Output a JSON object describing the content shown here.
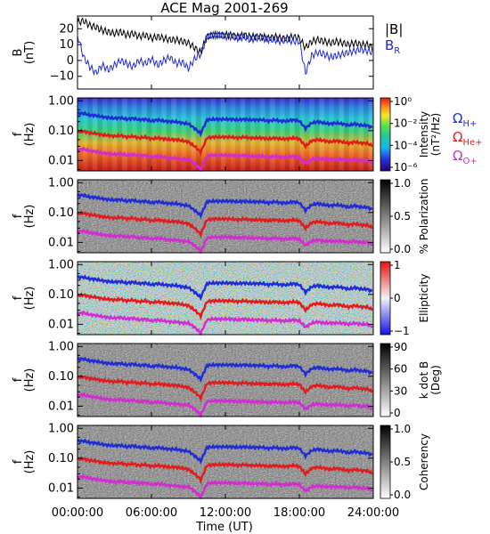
{
  "title": "ACE Mag 2001-269",
  "x_axis": {
    "label": "Time (UT)",
    "ticks": [
      "00:00:00",
      "06:00:00",
      "12:00:00",
      "18:00:00",
      "24:00:00"
    ],
    "tick_hours": [
      0,
      6,
      12,
      18,
      24
    ]
  },
  "chart_data": [
    {
      "type": "line",
      "panel": "magnetic-field",
      "ylabel_lines": [
        "B",
        "(nT)"
      ],
      "yticks": [
        -10,
        0,
        10,
        20
      ],
      "ylim": [
        -18,
        28
      ],
      "legend": [
        {
          "label": "|B|",
          "color": "#000000"
        },
        {
          "label": "B",
          "subscript": "R",
          "color": "#1f2bd6"
        }
      ],
      "x_hours": [
        0,
        0.5,
        1,
        1.5,
        2,
        2.5,
        3,
        3.5,
        4,
        4.5,
        5,
        5.5,
        6,
        6.5,
        7,
        7.5,
        8,
        8.5,
        9,
        9.5,
        10,
        10.5,
        11,
        11.5,
        12,
        12.5,
        13,
        13.5,
        14,
        14.5,
        15,
        15.5,
        16,
        16.5,
        17,
        17.5,
        18,
        18.5,
        19,
        19.5,
        20,
        20.5,
        21,
        21.5,
        22,
        22.5,
        23,
        23.5,
        24
      ],
      "series": [
        {
          "name": "|B|",
          "color": "#000000",
          "values": [
            24,
            25,
            22,
            21,
            19,
            18,
            17,
            18,
            16,
            17,
            15,
            16,
            14,
            15,
            14,
            13,
            13,
            12,
            11,
            8,
            5,
            15,
            16,
            16,
            16,
            16,
            15,
            16,
            15,
            15,
            15,
            14,
            15,
            14,
            14,
            15,
            14,
            8,
            12,
            13,
            12,
            11,
            12,
            11,
            10,
            11,
            10,
            10,
            8
          ]
        },
        {
          "name": "B_R",
          "color": "#1f2bd6",
          "values": [
            16,
            2,
            -4,
            -8,
            -3,
            -6,
            -3,
            0,
            -2,
            -4,
            0,
            -2,
            1,
            -3,
            0,
            2,
            -2,
            -1,
            -5,
            1,
            4,
            15,
            16,
            16,
            15,
            15,
            14,
            15,
            13,
            14,
            14,
            13,
            13,
            12,
            13,
            12,
            12,
            -8,
            3,
            5,
            4,
            2,
            3,
            4,
            5,
            6,
            7,
            6,
            5
          ]
        }
      ]
    },
    {
      "type": "heatmap",
      "panel": "intensity",
      "ylabel_lines": [
        "f",
        "(Hz)"
      ],
      "yticks": [
        "1.00",
        "0.10",
        "0.01"
      ],
      "ytick_values": [
        1.0,
        0.1,
        0.01
      ],
      "ylim_hz": [
        0.0045,
        1.25
      ],
      "colorbar": {
        "label": "Intensity",
        "unit": "(nT²/Hz)",
        "ticks": [
          "10⁰",
          "10⁻²",
          "10⁻⁴",
          "10⁻⁶"
        ]
      },
      "legend": [
        {
          "symbol": "Ω",
          "subscript": "H+",
          "color": "#1f2bd6"
        },
        {
          "symbol": "Ω",
          "subscript": "He+",
          "color": "#e31a1c"
        },
        {
          "symbol": "Ω",
          "subscript": "O+",
          "color": "#d42ad4"
        }
      ]
    },
    {
      "type": "heatmap",
      "panel": "polarization",
      "ylabel_lines": [
        "f",
        "(Hz)"
      ],
      "yticks": [
        "1.00",
        "0.10",
        "0.01"
      ],
      "colorbar": {
        "label": "% Polarization",
        "ticks": [
          "1.0",
          "0.5",
          "0.0"
        ]
      }
    },
    {
      "type": "heatmap",
      "panel": "ellipticity",
      "ylabel_lines": [
        "f",
        "(Hz)"
      ],
      "yticks": [
        "1.00",
        "0.10",
        "0.01"
      ],
      "colorbar": {
        "label": "Ellipticity",
        "ticks": [
          "1",
          "0",
          "−1"
        ]
      }
    },
    {
      "type": "heatmap",
      "panel": "wave-normal-angle",
      "ylabel_lines": [
        "f",
        "(Hz)"
      ],
      "yticks": [
        "1.00",
        "0.10",
        "0.01"
      ],
      "colorbar": {
        "label_lines": [
          "k dot B",
          "(Deg)"
        ],
        "ticks": [
          "90",
          "60",
          "30",
          "0"
        ]
      }
    },
    {
      "type": "heatmap",
      "panel": "coherency",
      "ylabel_lines": [
        "f",
        "(Hz)"
      ],
      "yticks": [
        "1.00",
        "0.10",
        "0.01"
      ],
      "colorbar": {
        "label": "Coherency",
        "ticks": [
          "1.0",
          "0.5",
          "0.0"
        ]
      }
    }
  ],
  "gyrofrequency_lines_hz": {
    "x_hours": [
      0,
      0.5,
      1,
      1.5,
      2,
      2.5,
      3,
      3.5,
      4,
      4.5,
      5,
      5.5,
      6,
      6.5,
      7,
      7.5,
      8,
      8.5,
      9,
      9.5,
      10,
      10.5,
      11,
      11.5,
      12,
      12.5,
      13,
      13.5,
      14,
      14.5,
      15,
      15.5,
      16,
      16.5,
      17,
      17.5,
      18,
      18.5,
      19,
      19.5,
      20,
      20.5,
      21,
      21.5,
      22,
      22.5,
      23,
      23.5,
      24
    ],
    "H+": [
      0.37,
      0.38,
      0.33,
      0.32,
      0.29,
      0.27,
      0.26,
      0.27,
      0.24,
      0.26,
      0.23,
      0.24,
      0.21,
      0.23,
      0.21,
      0.2,
      0.2,
      0.18,
      0.17,
      0.12,
      0.08,
      0.23,
      0.24,
      0.24,
      0.24,
      0.24,
      0.23,
      0.24,
      0.23,
      0.23,
      0.23,
      0.21,
      0.23,
      0.21,
      0.21,
      0.23,
      0.21,
      0.12,
      0.18,
      0.2,
      0.18,
      0.17,
      0.18,
      0.17,
      0.15,
      0.17,
      0.15,
      0.15,
      0.12
    ],
    "He+": [
      0.092,
      0.095,
      0.084,
      0.08,
      0.072,
      0.069,
      0.065,
      0.069,
      0.061,
      0.065,
      0.057,
      0.061,
      0.053,
      0.057,
      0.053,
      0.05,
      0.05,
      0.046,
      0.042,
      0.03,
      0.019,
      0.057,
      0.061,
      0.061,
      0.061,
      0.061,
      0.057,
      0.061,
      0.057,
      0.057,
      0.057,
      0.053,
      0.057,
      0.053,
      0.053,
      0.057,
      0.053,
      0.03,
      0.046,
      0.05,
      0.046,
      0.042,
      0.046,
      0.042,
      0.038,
      0.042,
      0.038,
      0.038,
      0.03
    ],
    "O+": [
      0.023,
      0.024,
      0.021,
      0.02,
      0.018,
      0.017,
      0.016,
      0.017,
      0.015,
      0.016,
      0.014,
      0.015,
      0.013,
      0.014,
      0.013,
      0.012,
      0.012,
      0.011,
      0.011,
      0.008,
      0.005,
      0.014,
      0.015,
      0.015,
      0.015,
      0.015,
      0.014,
      0.015,
      0.014,
      0.014,
      0.014,
      0.013,
      0.014,
      0.013,
      0.013,
      0.014,
      0.013,
      0.008,
      0.011,
      0.012,
      0.011,
      0.011,
      0.011,
      0.011,
      0.01,
      0.011,
      0.01,
      0.01,
      0.008
    ]
  },
  "colors": {
    "h_plus": "#1f2bd6",
    "he_plus": "#e31a1c",
    "o_plus": "#d42ad4",
    "b_total": "#000000",
    "b_radial": "#1f2bd6"
  }
}
